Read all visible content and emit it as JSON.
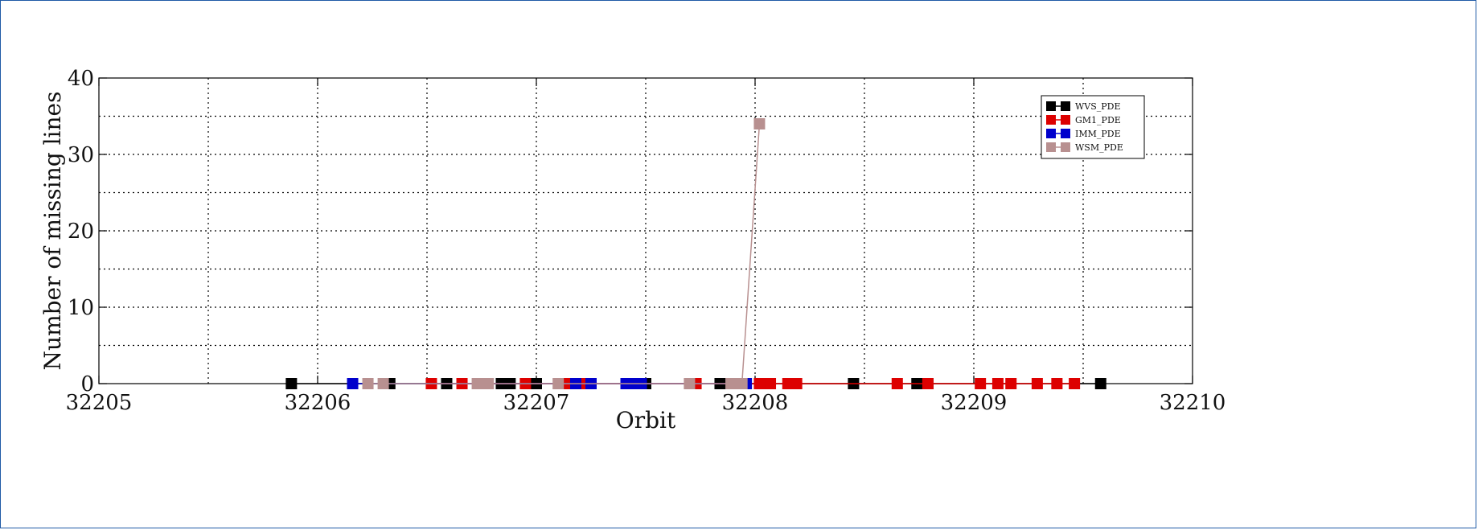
{
  "chart_data": {
    "type": "line",
    "title": "",
    "xlabel": "Orbit",
    "ylabel": "Number of missing lines",
    "xlim": [
      32205,
      32210
    ],
    "ylim": [
      0,
      40
    ],
    "xticks": [
      32205,
      32206,
      32207,
      32208,
      32209,
      32210
    ],
    "yticks": [
      0,
      10,
      20,
      30,
      40
    ],
    "grid": true,
    "legend_position": "top-right",
    "series": [
      {
        "name": "WVS_PDE",
        "color": "#000000",
        "points": [
          [
            32205.88,
            0
          ],
          [
            32206.33,
            0
          ],
          [
            32206.59,
            0
          ],
          [
            32206.84,
            0
          ],
          [
            32206.88,
            0
          ],
          [
            32207.0,
            0
          ],
          [
            32207.5,
            0
          ],
          [
            32207.84,
            0
          ],
          [
            32208.05,
            0
          ],
          [
            32208.45,
            0
          ],
          [
            32208.74,
            0
          ],
          [
            32208.79,
            0
          ],
          [
            32209.58,
            0
          ]
        ]
      },
      {
        "name": "GM1_PDE",
        "color": "#dd0000",
        "points": [
          [
            32206.52,
            0
          ],
          [
            32206.66,
            0
          ],
          [
            32206.95,
            0
          ],
          [
            32207.14,
            0
          ],
          [
            32207.22,
            0
          ],
          [
            32207.73,
            0
          ],
          [
            32208.02,
            0
          ],
          [
            32208.07,
            0
          ],
          [
            32208.15,
            0
          ],
          [
            32208.19,
            0
          ],
          [
            32208.65,
            0
          ],
          [
            32208.79,
            0
          ],
          [
            32209.03,
            0
          ],
          [
            32209.11,
            0
          ],
          [
            32209.17,
            0
          ],
          [
            32209.29,
            0
          ],
          [
            32209.38,
            0
          ],
          [
            32209.46,
            0
          ]
        ]
      },
      {
        "name": "IMM_PDE",
        "color": "#0000cc",
        "points": [
          [
            32206.16,
            0
          ],
          [
            32207.18,
            0
          ],
          [
            32207.25,
            0
          ],
          [
            32207.41,
            0
          ],
          [
            32207.45,
            0
          ],
          [
            32207.48,
            0
          ],
          [
            32207.96,
            0
          ]
        ]
      },
      {
        "name": "WSM_PDE",
        "color": "#b89090",
        "points": [
          [
            32206.23,
            0
          ],
          [
            32206.3,
            0
          ],
          [
            32206.73,
            0
          ],
          [
            32206.78,
            0
          ],
          [
            32207.1,
            0
          ],
          [
            32207.7,
            0
          ],
          [
            32207.89,
            0
          ],
          [
            32207.94,
            0
          ],
          [
            32208.02,
            34
          ]
        ]
      }
    ]
  }
}
